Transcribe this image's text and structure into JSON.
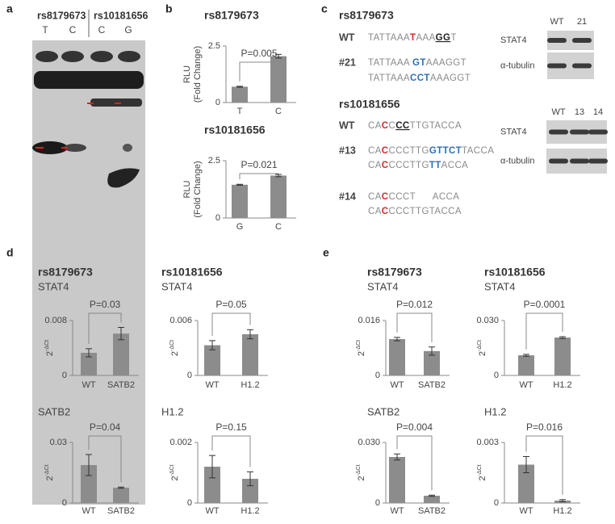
{
  "panels": {
    "a": {
      "letter": "a",
      "headers": [
        "rs8179673",
        "rs10181656"
      ],
      "lanes": [
        "T",
        "C",
        "C",
        "G"
      ]
    },
    "b": {
      "letter": "b"
    },
    "c": {
      "letter": "c",
      "groups": [
        {
          "title": "rs8179673",
          "rows": [
            {
              "label": "WT",
              "lines": [
                [
                  {
                    "text": "TATTAAA"
                  },
                  {
                    "text": "T",
                    "color": "#d9262a"
                  },
                  {
                    "text": "AAA"
                  },
                  {
                    "text": "GG",
                    "underline": true
                  },
                  {
                    "text": "T"
                  }
                ]
              ]
            },
            {
              "label": "#21",
              "lines": [
                [
                  {
                    "text": "TATTAAA "
                  },
                  {
                    "text": "GT",
                    "color": "#2e6fb7"
                  },
                  {
                    "text": "AAAGGT"
                  }
                ],
                [
                  {
                    "text": "TATTAAA"
                  },
                  {
                    "text": "CCT",
                    "color": "#2e6fb7"
                  },
                  {
                    "text": "AAAGGT"
                  }
                ]
              ]
            }
          ],
          "blot": {
            "lanes": [
              "WT",
              "21"
            ],
            "bands": [
              "STAT4",
              "α-tubulin"
            ]
          }
        },
        {
          "title": "rs10181656",
          "rows": [
            {
              "label": "WT",
              "lines": [
                [
                  {
                    "text": "CA"
                  },
                  {
                    "text": "C",
                    "color": "#d9262a"
                  },
                  {
                    "text": "C"
                  },
                  {
                    "text": "CC",
                    "underline": true
                  },
                  {
                    "text": "TTGTACCA"
                  }
                ]
              ]
            },
            {
              "label": "#13",
              "lines": [
                [
                  {
                    "text": "CA"
                  },
                  {
                    "text": "C",
                    "color": "#d9262a"
                  },
                  {
                    "text": "CCCTTG"
                  },
                  {
                    "text": "GTTCT",
                    "color": "#2e6fb7"
                  },
                  {
                    "text": "TACCA"
                  }
                ],
                [
                  {
                    "text": "CA"
                  },
                  {
                    "text": "C",
                    "color": "#d9262a"
                  },
                  {
                    "text": "CCCTTG"
                  },
                  {
                    "text": "TT",
                    "color": "#2e6fb7"
                  },
                  {
                    "text": "ACCA"
                  }
                ]
              ]
            },
            {
              "label": "#14",
              "lines": [
                [
                  {
                    "text": "CA"
                  },
                  {
                    "text": "C",
                    "color": "#d9262a"
                  },
                  {
                    "text": "CCCT      ACCA"
                  }
                ],
                [
                  {
                    "text": "CA"
                  },
                  {
                    "text": "C",
                    "color": "#d9262a"
                  },
                  {
                    "text": "CCCTTGTACCA"
                  }
                ]
              ]
            }
          ],
          "blot": {
            "lanes": [
              "WT",
              "13",
              "14"
            ],
            "bands": [
              "STAT4",
              "α-tubulin"
            ]
          }
        }
      ]
    },
    "d": {
      "letter": "d"
    },
    "e": {
      "letter": "e"
    }
  },
  "chart_data": [
    {
      "type": "bar",
      "title": "rs8179673",
      "ylabel": [
        "RLU",
        "(Fold Change)"
      ],
      "categories": [
        "T",
        "C"
      ],
      "values": [
        0.7,
        2.05
      ],
      "errors": [
        0.02,
        0.08
      ],
      "ylim": [
        0,
        2.5
      ],
      "yticks": [
        0,
        2.5
      ],
      "annotation": "P=0.005",
      "color": "#8c8c8c"
    },
    {
      "type": "bar",
      "title": "rs10181656",
      "ylabel": [
        "RLU",
        "(Fold Change)"
      ],
      "categories": [
        "G",
        "C"
      ],
      "values": [
        1.45,
        1.85
      ],
      "errors": [
        0.02,
        0.05
      ],
      "ylim": [
        0,
        2.5
      ],
      "yticks": [
        0,
        2.5
      ],
      "annotation": "P=0.021",
      "color": "#8c8c8c"
    },
    {
      "type": "bar",
      "title": "rs8179673",
      "subtitle": "STAT4",
      "ylabel": {
        "base": "2",
        "sup": "-ΔCt"
      },
      "categories": [
        "WT",
        "SATB2"
      ],
      "values": [
        0.0033,
        0.0061
      ],
      "errors": [
        0.0006,
        0.0009
      ],
      "ylim": [
        0,
        0.008
      ],
      "yticks": [
        0,
        0.008
      ],
      "annotation": "P=0.03",
      "color": "#8c8c8c"
    },
    {
      "type": "bar",
      "title": "rs10181656",
      "subtitle": "STAT4",
      "ylabel": {
        "base": "2",
        "sup": "-ΔCt"
      },
      "categories": [
        "WT",
        "H1.2"
      ],
      "values": [
        0.0033,
        0.0045
      ],
      "errors": [
        0.0005,
        0.0005
      ],
      "ylim": [
        0,
        0.006
      ],
      "yticks": [
        0,
        0.006
      ],
      "annotation": "P=0.05",
      "color": "#8c8c8c"
    },
    {
      "type": "bar",
      "subtitle": "SATB2",
      "ylabel": {
        "base": "2",
        "sup": "-ΔCt"
      },
      "categories": [
        "WT",
        "SATB2"
      ],
      "values": [
        0.0188,
        0.0076
      ],
      "errors": [
        0.0052,
        0.0003
      ],
      "ylim": [
        0,
        0.03
      ],
      "yticks": [
        0,
        0.03
      ],
      "annotation": "P=0.04",
      "color": "#8c8c8c"
    },
    {
      "type": "bar",
      "subtitle": "H1.2",
      "ylabel": {
        "base": "2",
        "sup": "-ΔCt"
      },
      "categories": [
        "WT",
        "H1.2"
      ],
      "values": [
        0.0012,
        0.0008
      ],
      "errors": [
        0.00037,
        0.00023
      ],
      "ylim": [
        0,
        0.002
      ],
      "yticks": [
        0,
        0.002
      ],
      "annotation": "P=0.15",
      "color": "#8c8c8c"
    },
    {
      "type": "bar",
      "title": "rs8179673",
      "subtitle": "STAT4",
      "ylabel": {
        "base": "2",
        "sup": "-ΔCt"
      },
      "categories": [
        "WT",
        "SATB2"
      ],
      "values": [
        0.0106,
        0.0071
      ],
      "errors": [
        0.0005,
        0.0012
      ],
      "ylim": [
        0,
        0.016
      ],
      "yticks": [
        0,
        0.016
      ],
      "annotation": "P=0.012",
      "color": "#8c8c8c"
    },
    {
      "type": "bar",
      "title": "rs10181656",
      "subtitle": "STAT4",
      "ylabel": {
        "base": "2",
        "sup": "-ΔCt"
      },
      "categories": [
        "WT",
        "H1.2"
      ],
      "values": [
        0.011,
        0.0207
      ],
      "errors": [
        0.0005,
        0.0005
      ],
      "ylim": [
        0,
        0.03
      ],
      "yticks": [
        0,
        {
          "value": 0.03,
          "label": "0.030"
        }
      ],
      "annotation": "P=0.0001",
      "color": "#8c8c8c"
    },
    {
      "type": "bar",
      "subtitle": "SATB2",
      "ylabel": {
        "base": "2",
        "sup": "-ΔCt"
      },
      "categories": [
        "WT",
        "SATB2"
      ],
      "values": [
        0.0228,
        0.0036
      ],
      "errors": [
        0.0015,
        0.0003
      ],
      "ylim": [
        0,
        0.03
      ],
      "yticks": [
        0,
        {
          "value": 0.03,
          "label": "0.030"
        }
      ],
      "annotation": "P=0.004",
      "color": "#8c8c8c"
    },
    {
      "type": "bar",
      "subtitle": "H1.2",
      "ylabel": {
        "base": "2",
        "sup": "-ΔCt"
      },
      "categories": [
        "WT",
        "H1.2"
      ],
      "values": [
        0.0019,
        0.00012
      ],
      "errors": [
        0.0004,
        5e-05
      ],
      "ylim": [
        0,
        0.003
      ],
      "yticks": [
        0,
        0.003
      ],
      "annotation": "P=0.016",
      "color": "#8c8c8c"
    }
  ]
}
